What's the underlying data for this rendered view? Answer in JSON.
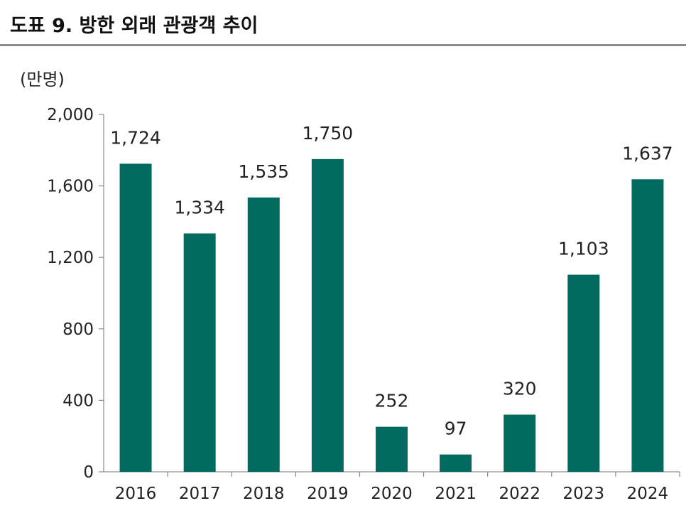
{
  "title": "도표 9. 방한 외래 관광객 추이",
  "chart_data": {
    "type": "bar",
    "title": "도표 9. 방한 외래 관광객 추이",
    "ylabel": "(만명)",
    "xlabel": "",
    "categories": [
      "2016",
      "2017",
      "2018",
      "2019",
      "2020",
      "2021",
      "2022",
      "2023",
      "2024"
    ],
    "values": [
      1724,
      1334,
      1535,
      1750,
      252,
      97,
      320,
      1103,
      1637
    ],
    "value_labels": [
      "1,724",
      "1,334",
      "1,535",
      "1,750",
      "252",
      "97",
      "320",
      "1,103",
      "1,637"
    ],
    "ylim": [
      0,
      2000
    ],
    "yticks": [
      0,
      400,
      800,
      1200,
      1600,
      2000
    ],
    "ytick_labels": [
      "0",
      "400",
      "800",
      "1,200",
      "1,600",
      "2,000"
    ],
    "grid": false,
    "legend": "none",
    "bar_color": "#006B5E"
  }
}
